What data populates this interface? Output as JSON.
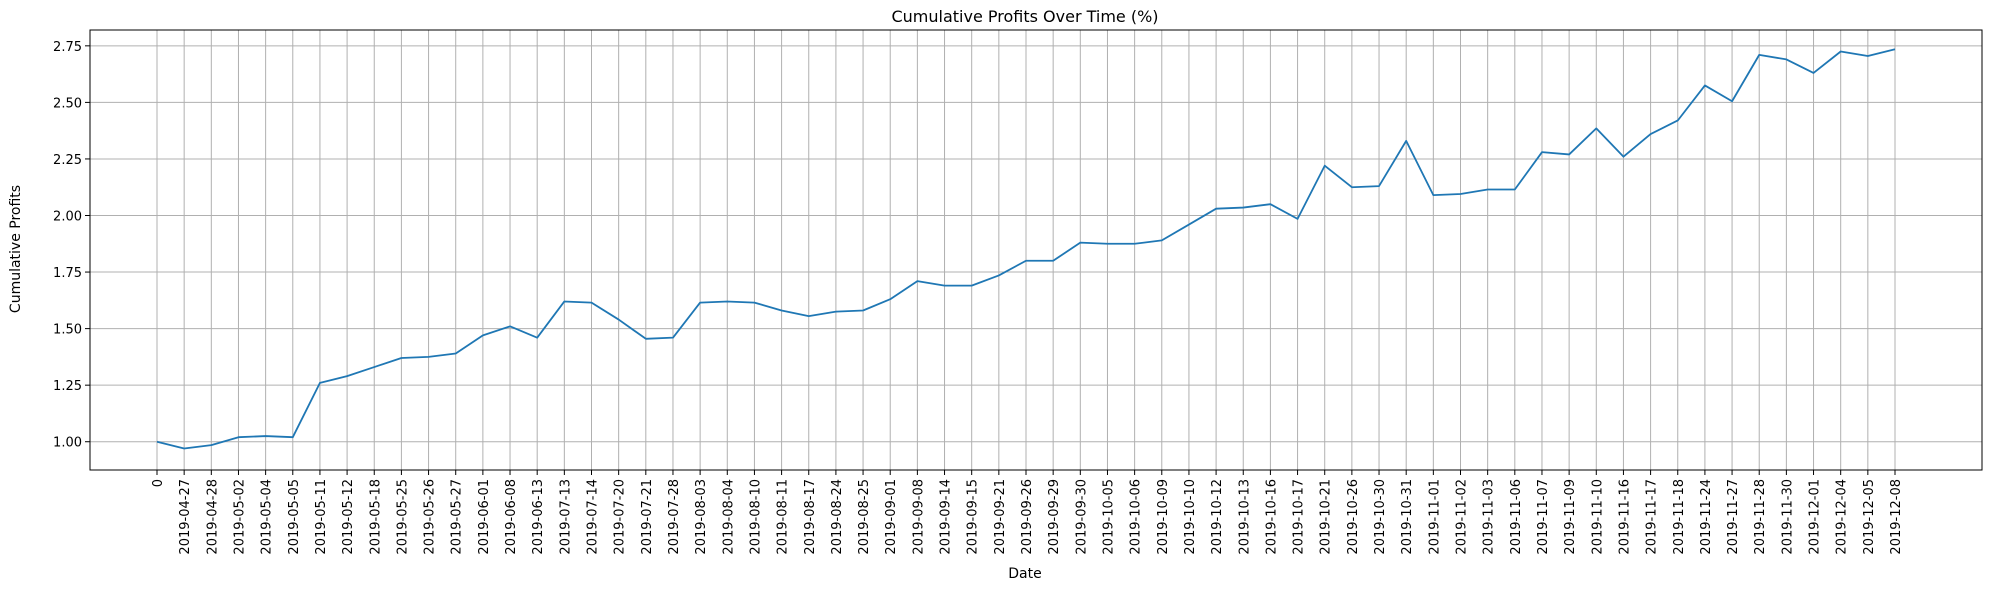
{
  "chart_data": {
    "type": "line",
    "title": "Cumulative Profits Over Time (%)",
    "xlabel": "Date",
    "ylabel": "Cumulative Profits",
    "ylim": [
      0.875,
      2.82
    ],
    "yticks": [
      1.0,
      1.25,
      1.5,
      1.75,
      2.0,
      2.25,
      2.5,
      2.75
    ],
    "ytick_labels": [
      "1.00",
      "1.25",
      "1.50",
      "1.75",
      "2.00",
      "2.25",
      "2.50",
      "2.75"
    ],
    "grid": true,
    "colors": {
      "line": "#1f77b4",
      "grid": "#b0b0b0",
      "axes": "#000000"
    },
    "categories": [
      "0",
      "2019-04-27",
      "2019-04-28",
      "2019-05-02",
      "2019-05-04",
      "2019-05-05",
      "2019-05-11",
      "2019-05-12",
      "2019-05-18",
      "2019-05-25",
      "2019-05-26",
      "2019-05-27",
      "2019-06-01",
      "2019-06-08",
      "2019-06-13",
      "2019-07-13",
      "2019-07-14",
      "2019-07-20",
      "2019-07-21",
      "2019-07-28",
      "2019-08-03",
      "2019-08-04",
      "2019-08-10",
      "2019-08-11",
      "2019-08-17",
      "2019-08-24",
      "2019-08-25",
      "2019-09-01",
      "2019-09-08",
      "2019-09-14",
      "2019-09-15",
      "2019-09-21",
      "2019-09-26",
      "2019-09-29",
      "2019-09-30",
      "2019-10-05",
      "2019-10-06",
      "2019-10-09",
      "2019-10-10",
      "2019-10-12",
      "2019-10-13",
      "2019-10-16",
      "2019-10-17",
      "2019-10-21",
      "2019-10-26",
      "2019-10-30",
      "2019-10-31",
      "2019-11-01",
      "2019-11-02",
      "2019-11-03",
      "2019-11-06",
      "2019-11-07",
      "2019-11-09",
      "2019-11-10",
      "2019-11-16",
      "2019-11-17",
      "2019-11-18",
      "2019-11-24",
      "2019-11-27",
      "2019-11-28",
      "2019-11-30",
      "2019-12-01",
      "2019-12-04",
      "2019-12-05",
      "2019-12-08"
    ],
    "values": [
      1.0,
      0.97,
      0.985,
      1.02,
      1.025,
      1.02,
      1.26,
      1.29,
      1.33,
      1.37,
      1.375,
      1.39,
      1.47,
      1.51,
      1.46,
      1.62,
      1.615,
      1.54,
      1.455,
      1.46,
      1.615,
      1.62,
      1.615,
      1.58,
      1.555,
      1.575,
      1.58,
      1.63,
      1.71,
      1.69,
      1.69,
      1.735,
      1.8,
      1.8,
      1.88,
      1.875,
      1.875,
      1.89,
      1.96,
      2.03,
      2.035,
      2.05,
      1.985,
      2.22,
      2.125,
      2.13,
      2.33,
      2.09,
      2.095,
      2.115,
      2.115,
      2.28,
      2.27,
      2.385,
      2.26,
      2.36,
      2.42,
      2.575,
      2.505,
      2.71,
      2.69,
      2.63,
      2.725,
      2.705,
      2.735
    ]
  }
}
